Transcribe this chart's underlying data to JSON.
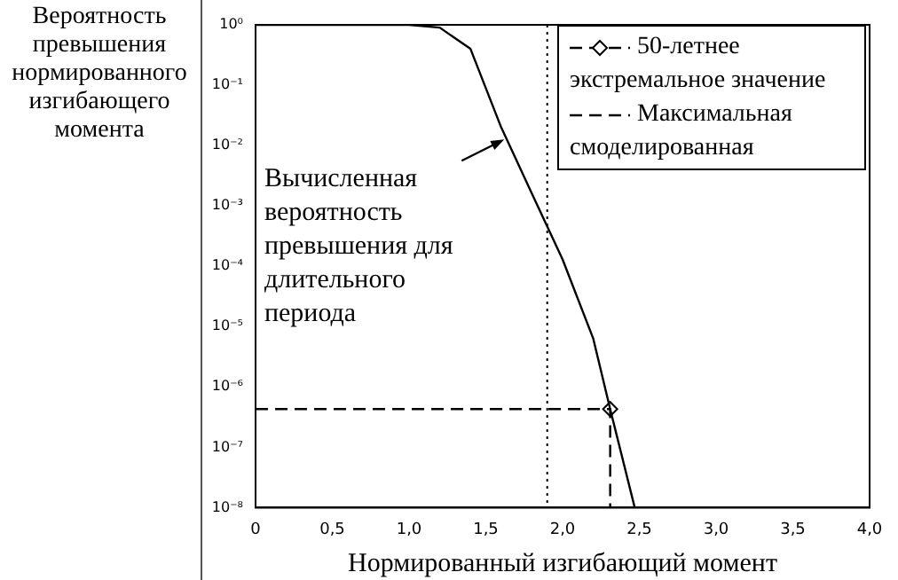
{
  "chart_data": {
    "type": "line",
    "ylabel": "Вероятность превышения нормированного изгибающего момента",
    "xlabel": "Нормированный изгибающий момент",
    "log": "y",
    "grid": false,
    "legend": "top right",
    "xlim": [
      0,
      4
    ],
    "xticks": [
      0,
      {
        "value": 0.5,
        "label": "0,5"
      },
      {
        "value": 1,
        "label": "1,0"
      },
      {
        "value": 1.5,
        "label": "1,5"
      },
      {
        "value": 2,
        "label": "2,0"
      },
      {
        "value": 2.5,
        "label": "2,5"
      },
      {
        "value": 3,
        "label": "3,0"
      },
      {
        "value": 3.5,
        "label": "3,5"
      },
      {
        "value": 4,
        "label": "4,0"
      }
    ],
    "ylim": [
      1e-08,
      1
    ],
    "yticks": [
      {
        "value": 1,
        "label": "10⁰"
      },
      {
        "value": 0.1,
        "label": "10⁻¹"
      },
      {
        "value": 0.01,
        "label": "10⁻²"
      },
      {
        "value": 0.001,
        "label": "10⁻³"
      },
      {
        "value": 0.0001,
        "label": "10⁻⁴"
      },
      {
        "value": 1e-05,
        "label": "10⁻⁵"
      },
      {
        "value": 1e-06,
        "label": "10⁻⁶"
      },
      {
        "value": 1e-07,
        "label": "10⁻⁷"
      },
      {
        "value": 1e-08,
        "label": "10⁻⁸"
      }
    ],
    "series": [
      {
        "color": "#000000",
        "marker": "none",
        "line_style": "solid",
        "x": [
          0,
          1.0,
          1.2,
          1.4,
          1.6,
          1.8,
          2.0,
          2.2,
          2.31,
          2.47
        ],
        "values": [
          1,
          1,
          0.9,
          0.4,
          0.02,
          0.0016,
          0.00013,
          6.3e-06,
          4.3e-07,
          1e-08
        ]
      },
      {
        "type": "scatter",
        "name": "50-летнее экстремальное значение",
        "color": "#000000",
        "marker": "diamond",
        "x": [
          2.31
        ],
        "values": [
          4.3e-07
        ]
      },
      {
        "type": "line",
        "name": "Максимальная смоделированная",
        "color": "#000000",
        "marker": "none",
        "line_style": "dashed",
        "x": [
          0,
          2.31,
          2.31
        ],
        "values": [
          4.3e-07,
          4.3e-07,
          1e-08
        ]
      }
    ],
    "ref_lines": [
      {
        "axis": "x",
        "value": 1.9,
        "color": "#000000",
        "line_style": "dotted"
      }
    ],
    "annotations": [
      {
        "text": "Вычисленная вероятность превышения для длительного периода",
        "x": 1.62,
        "y": 0.0126
      }
    ]
  }
}
